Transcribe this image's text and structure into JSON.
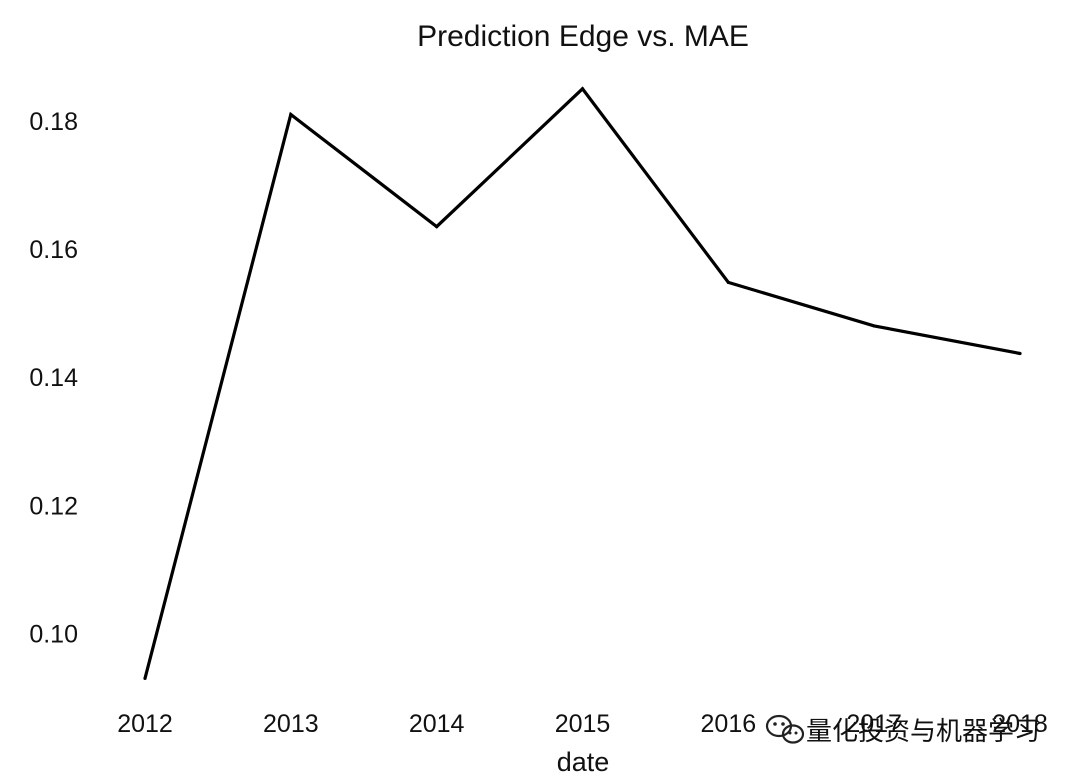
{
  "chart_data": {
    "type": "line",
    "title": "Prediction Edge vs. MAE",
    "xlabel": "date",
    "ylabel": "",
    "x": [
      2012,
      2013,
      2014,
      2015,
      2016,
      2017,
      2018
    ],
    "x_tick_labels": [
      "2012",
      "2013",
      "2014",
      "2015",
      "2016",
      "2017",
      "2018"
    ],
    "series": [
      {
        "values": [
          0.093,
          0.181,
          0.1635,
          0.185,
          0.1548,
          0.148,
          0.1437
        ]
      }
    ],
    "y_ticks": [
      0.1,
      0.12,
      0.14,
      0.16,
      0.18
    ],
    "y_tick_labels": [
      "0.10",
      "0.12",
      "0.14",
      "0.16",
      "0.18"
    ],
    "ylim": [
      0.0915,
      0.1895
    ],
    "xlim": [
      2012,
      2018
    ],
    "grid": false,
    "line_color": "#000000"
  },
  "watermark": {
    "text": "量化投资与机器学习",
    "icon": "wechat-icon"
  }
}
